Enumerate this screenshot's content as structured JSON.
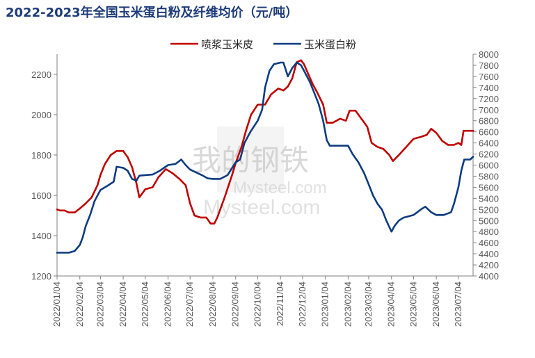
{
  "chart_data": {
    "type": "line",
    "title": "2022-2023年全国玉米蛋白粉及纤维均价（元/吨）",
    "legend_position": "top-right",
    "grid": false,
    "x_tick_labels": [
      "2022/01/04",
      "2022/02/04",
      "2022/03/04",
      "2022/04/04",
      "2022/05/04",
      "2022/06/04",
      "2022/07/04",
      "2022/08/04",
      "2022/09/04",
      "2022/10/04",
      "2022/11/04",
      "2022/12/04",
      "2023/01/04",
      "2023/02/04",
      "2023/03/04",
      "2023/04/04",
      "2023/05/04",
      "2023/06/04",
      "2023/07/04"
    ],
    "x_range": [
      "2022/01/04",
      "2023/07/24"
    ],
    "y_left": {
      "ylim": [
        1200,
        2300
      ],
      "ticks": [
        1200,
        1400,
        1600,
        1800,
        2000,
        2200
      ]
    },
    "y_right": {
      "ylim": [
        4000,
        8000
      ],
      "ticks": [
        4000,
        4200,
        4400,
        4600,
        4800,
        5000,
        5200,
        5400,
        5600,
        5800,
        6000,
        6200,
        6400,
        6600,
        6800,
        7000,
        7200,
        7400,
        7600,
        7800,
        8000
      ]
    },
    "series": [
      {
        "name": "喷浆玉米皮",
        "axis": "left",
        "color": "#c00000",
        "points": [
          [
            "2022-01-04",
            1530
          ],
          [
            "2022-01-08",
            1525
          ],
          [
            "2022-01-14",
            1525
          ],
          [
            "2022-01-20",
            1515
          ],
          [
            "2022-01-28",
            1515
          ],
          [
            "2022-02-04",
            1535
          ],
          [
            "2022-02-12",
            1560
          ],
          [
            "2022-02-20",
            1590
          ],
          [
            "2022-02-28",
            1650
          ],
          [
            "2022-03-04",
            1700
          ],
          [
            "2022-03-10",
            1755
          ],
          [
            "2022-03-18",
            1800
          ],
          [
            "2022-03-26",
            1820
          ],
          [
            "2022-04-04",
            1820
          ],
          [
            "2022-04-10",
            1790
          ],
          [
            "2022-04-16",
            1740
          ],
          [
            "2022-04-22",
            1660
          ],
          [
            "2022-04-26",
            1590
          ],
          [
            "2022-05-04",
            1630
          ],
          [
            "2022-05-14",
            1640
          ],
          [
            "2022-05-22",
            1690
          ],
          [
            "2022-06-01",
            1730
          ],
          [
            "2022-06-10",
            1710
          ],
          [
            "2022-06-20",
            1680
          ],
          [
            "2022-06-28",
            1650
          ],
          [
            "2022-07-04",
            1560
          ],
          [
            "2022-07-10",
            1500
          ],
          [
            "2022-07-18",
            1490
          ],
          [
            "2022-07-26",
            1490
          ],
          [
            "2022-08-01",
            1460
          ],
          [
            "2022-08-06",
            1460
          ],
          [
            "2022-08-10",
            1490
          ],
          [
            "2022-08-20",
            1590
          ],
          [
            "2022-08-30",
            1700
          ],
          [
            "2022-09-04",
            1760
          ],
          [
            "2022-09-12",
            1840
          ],
          [
            "2022-09-18",
            1920
          ],
          [
            "2022-09-25",
            2000
          ],
          [
            "2022-10-04",
            2050
          ],
          [
            "2022-10-14",
            2050
          ],
          [
            "2022-10-22",
            2100
          ],
          [
            "2022-11-01",
            2130
          ],
          [
            "2022-11-08",
            2120
          ],
          [
            "2022-11-14",
            2140
          ],
          [
            "2022-11-20",
            2180
          ],
          [
            "2022-11-26",
            2260
          ],
          [
            "2022-12-02",
            2270
          ],
          [
            "2022-12-06",
            2250
          ],
          [
            "2022-12-12",
            2200
          ],
          [
            "2022-12-18",
            2150
          ],
          [
            "2022-12-24",
            2110
          ],
          [
            "2023-01-01",
            2050
          ],
          [
            "2023-01-06",
            1960
          ],
          [
            "2023-01-14",
            1960
          ],
          [
            "2023-01-24",
            1980
          ],
          [
            "2023-02-01",
            1970
          ],
          [
            "2023-02-06",
            2020
          ],
          [
            "2023-02-14",
            2020
          ],
          [
            "2023-02-22",
            1980
          ],
          [
            "2023-03-02",
            1940
          ],
          [
            "2023-03-08",
            1860
          ],
          [
            "2023-03-16",
            1840
          ],
          [
            "2023-03-24",
            1830
          ],
          [
            "2023-04-01",
            1800
          ],
          [
            "2023-04-06",
            1770
          ],
          [
            "2023-04-14",
            1800
          ],
          [
            "2023-04-24",
            1840
          ],
          [
            "2023-05-04",
            1880
          ],
          [
            "2023-05-14",
            1890
          ],
          [
            "2023-05-22",
            1900
          ],
          [
            "2023-05-28",
            1930
          ],
          [
            "2023-06-04",
            1910
          ],
          [
            "2023-06-12",
            1870
          ],
          [
            "2023-06-20",
            1850
          ],
          [
            "2023-06-28",
            1850
          ],
          [
            "2023-07-04",
            1860
          ],
          [
            "2023-07-08",
            1850
          ],
          [
            "2023-07-11",
            1920
          ],
          [
            "2023-07-18",
            1920
          ],
          [
            "2023-07-24",
            1920
          ]
        ]
      },
      {
        "name": "玉米蛋白粉",
        "axis": "right",
        "color": "#0d3b7f",
        "points": [
          [
            "2022-01-04",
            4420
          ],
          [
            "2022-01-10",
            4420
          ],
          [
            "2022-01-20",
            4420
          ],
          [
            "2022-01-28",
            4450
          ],
          [
            "2022-02-04",
            4560
          ],
          [
            "2022-02-08",
            4700
          ],
          [
            "2022-02-12",
            4900
          ],
          [
            "2022-02-18",
            5100
          ],
          [
            "2022-02-24",
            5350
          ],
          [
            "2022-03-04",
            5550
          ],
          [
            "2022-03-14",
            5630
          ],
          [
            "2022-03-22",
            5700
          ],
          [
            "2022-03-26",
            5970
          ],
          [
            "2022-04-04",
            5950
          ],
          [
            "2022-04-10",
            5900
          ],
          [
            "2022-04-16",
            5750
          ],
          [
            "2022-04-22",
            5720
          ],
          [
            "2022-04-26",
            5810
          ],
          [
            "2022-05-04",
            5820
          ],
          [
            "2022-05-14",
            5830
          ],
          [
            "2022-05-24",
            5900
          ],
          [
            "2022-06-04",
            6000
          ],
          [
            "2022-06-14",
            6020
          ],
          [
            "2022-06-22",
            6100
          ],
          [
            "2022-06-28",
            6000
          ],
          [
            "2022-07-04",
            5920
          ],
          [
            "2022-07-12",
            5870
          ],
          [
            "2022-07-20",
            5820
          ],
          [
            "2022-07-28",
            5760
          ],
          [
            "2022-08-04",
            5750
          ],
          [
            "2022-08-14",
            5750
          ],
          [
            "2022-08-24",
            5820
          ],
          [
            "2022-09-04",
            6050
          ],
          [
            "2022-09-10",
            6100
          ],
          [
            "2022-09-16",
            6400
          ],
          [
            "2022-09-24",
            6600
          ],
          [
            "2022-10-04",
            6800
          ],
          [
            "2022-10-10",
            7000
          ],
          [
            "2022-10-14",
            7400
          ],
          [
            "2022-10-20",
            7700
          ],
          [
            "2022-10-26",
            7820
          ],
          [
            "2022-11-04",
            7850
          ],
          [
            "2022-11-08",
            7850
          ],
          [
            "2022-11-14",
            7600
          ],
          [
            "2022-11-20",
            7750
          ],
          [
            "2022-11-26",
            7850
          ],
          [
            "2022-12-02",
            7800
          ],
          [
            "2022-12-08",
            7650
          ],
          [
            "2022-12-14",
            7500
          ],
          [
            "2022-12-20",
            7300
          ],
          [
            "2022-12-26",
            7100
          ],
          [
            "2023-01-01",
            6800
          ],
          [
            "2023-01-06",
            6450
          ],
          [
            "2023-01-10",
            6350
          ],
          [
            "2023-01-20",
            6350
          ],
          [
            "2023-02-01",
            6350
          ],
          [
            "2023-02-04",
            6350
          ],
          [
            "2023-02-10",
            6200
          ],
          [
            "2023-02-18",
            6050
          ],
          [
            "2023-02-26",
            5850
          ],
          [
            "2023-03-04",
            5650
          ],
          [
            "2023-03-10",
            5450
          ],
          [
            "2023-03-16",
            5300
          ],
          [
            "2023-03-22",
            5200
          ],
          [
            "2023-03-28",
            5000
          ],
          [
            "2023-04-04",
            4800
          ],
          [
            "2023-04-08",
            4900
          ],
          [
            "2023-04-14",
            5000
          ],
          [
            "2023-04-20",
            5050
          ],
          [
            "2023-05-04",
            5100
          ],
          [
            "2023-05-14",
            5200
          ],
          [
            "2023-05-20",
            5250
          ],
          [
            "2023-05-28",
            5150
          ],
          [
            "2023-06-04",
            5100
          ],
          [
            "2023-06-14",
            5100
          ],
          [
            "2023-06-24",
            5150
          ],
          [
            "2023-06-28",
            5300
          ],
          [
            "2023-07-04",
            5600
          ],
          [
            "2023-07-08",
            5900
          ],
          [
            "2023-07-12",
            6100
          ],
          [
            "2023-07-20",
            6100
          ],
          [
            "2023-07-24",
            6150
          ]
        ]
      }
    ]
  },
  "watermark": {
    "logo": "我的钢铁",
    "text1": "Mysteel.com",
    "text2": "Mysteel.com"
  }
}
